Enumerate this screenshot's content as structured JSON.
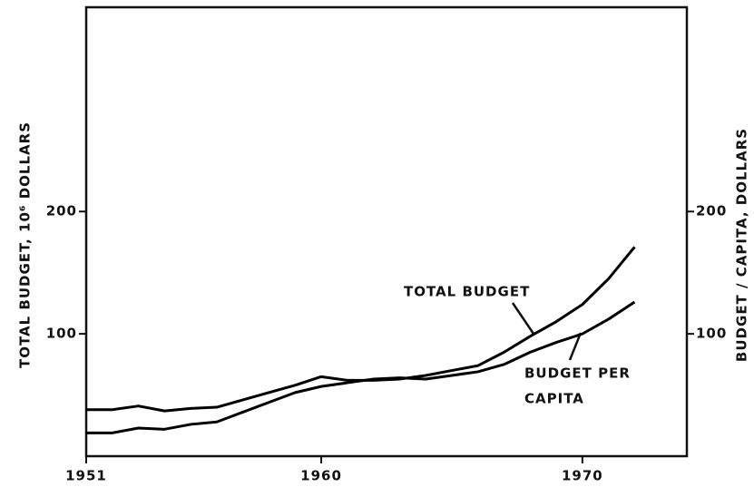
{
  "chart_data": {
    "type": "line",
    "x": [
      1951,
      1952,
      1953,
      1954,
      1955,
      1956,
      1957,
      1958,
      1959,
      1960,
      1961,
      1962,
      1963,
      1964,
      1965,
      1966,
      1967,
      1968,
      1969,
      1970,
      1971,
      1972
    ],
    "series": [
      {
        "name": "TOTAL BUDGET",
        "color": "#000000",
        "values": [
          38,
          38,
          41,
          37,
          39,
          40,
          46,
          52,
          58,
          65,
          62,
          62,
          63,
          66,
          70,
          74,
          85,
          98,
          110,
          124,
          145,
          171
        ]
      },
      {
        "name": "BUDGET PER CAPITA",
        "color": "#000000",
        "axis": "y2",
        "values": [
          19,
          19,
          23,
          22,
          26,
          28,
          36,
          44,
          52,
          57,
          60,
          63,
          64,
          63,
          66,
          69,
          75,
          85,
          93,
          100,
          112,
          126
        ]
      }
    ],
    "xlim": [
      1951,
      1974
    ],
    "xticks": [
      1951,
      1960,
      1970
    ],
    "ylim": [
      0,
      367
    ],
    "yticks": [
      100,
      200
    ],
    "y2lim": [
      0,
      367
    ],
    "y2ticks": [
      100,
      200
    ],
    "ylabel": "TOTAL BUDGET, 10⁶ DOLLARS",
    "y2label": "BUDGET / CAPITA, DOLLARS",
    "annotations": [
      "TOTAL BUDGET",
      "BUDGET PER",
      "CAPITA"
    ],
    "grid": false
  }
}
